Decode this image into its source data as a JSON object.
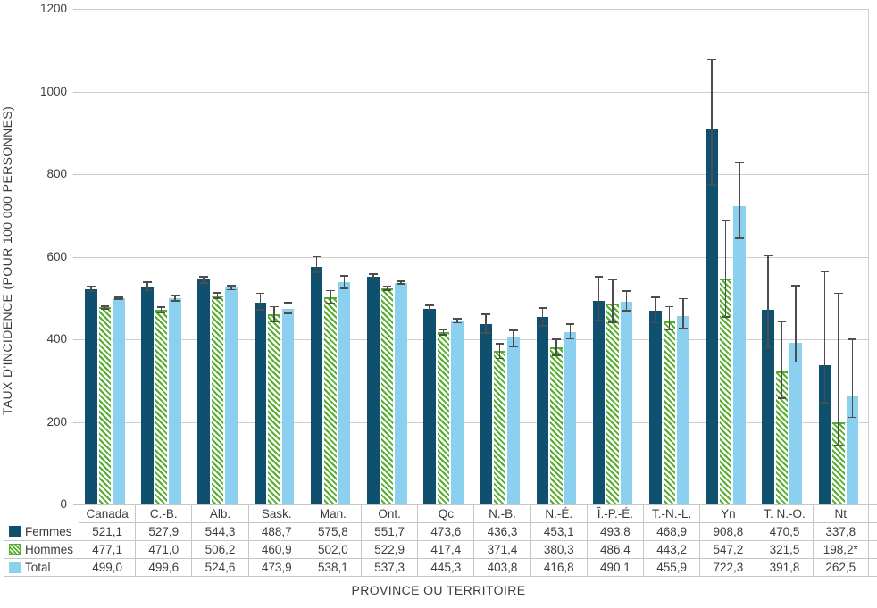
{
  "chart_data": {
    "type": "bar",
    "title": "",
    "xlabel": "PROVINCE OU TERRITOIRE",
    "ylabel": "TAUX D'INCIDENCE (POUR 100 000 PERSONNES)",
    "ylim": [
      0,
      1200
    ],
    "yticks": [
      0,
      200,
      400,
      600,
      800,
      1000,
      1200
    ],
    "grid": true,
    "legend_position": "table-left",
    "error_bars": true,
    "colors": {
      "femmes": "#0e506e",
      "hommes": "#54ad2b",
      "total": "#8bd0ee",
      "error": "#4d4d4d",
      "gridline": "#cdcdcd"
    },
    "categories": [
      "Canada",
      "C.-B.",
      "Alb.",
      "Sask.",
      "Man.",
      "Ont.",
      "Qc",
      "N.-B.",
      "N.-É.",
      "Î.-P.-É.",
      "T.-N.-L.",
      "Yn",
      "T. N.-O.",
      "Nt"
    ],
    "series": [
      {
        "name": "Femmes",
        "style": "solid-femmes",
        "values": [
          521.1,
          527.9,
          544.3,
          488.7,
          575.8,
          551.7,
          473.6,
          436.3,
          453.1,
          493.8,
          468.9,
          908.8,
          470.5,
          337.8
        ],
        "labels": [
          "521,1",
          "527,9",
          "544,3",
          "488,7",
          "575,8",
          "551,7",
          "473,6",
          "436,3",
          "453,1",
          "493,8",
          "468,9",
          "908,8",
          "470,5",
          "337,8"
        ],
        "ci_low": [
          514,
          516,
          535,
          469,
          560,
          544,
          464,
          413,
          431,
          444,
          438,
          773,
          378,
          245
        ],
        "ci_high": [
          529,
          540,
          553,
          513,
          602,
          560,
          484,
          463,
          477,
          553,
          503,
          1080,
          604,
          565
        ]
      },
      {
        "name": "Hommes",
        "style": "hatch-hommes",
        "values": [
          477.1,
          471.0,
          506.2,
          460.9,
          502.0,
          522.9,
          417.4,
          371.4,
          380.3,
          486.4,
          443.2,
          547.2,
          321.5,
          198.2
        ],
        "labels": [
          "477,1",
          "471,0",
          "506,2",
          "460,9",
          "502,0",
          "522,9",
          "417,4",
          "371,4",
          "380,3",
          "486,4",
          "443,2",
          "547,2",
          "321,5",
          "198,2*"
        ],
        "ci_low": [
          472,
          462,
          498,
          442,
          484,
          517,
          409,
          352,
          359,
          439,
          421,
          452,
          255,
          142
        ],
        "ci_high": [
          482,
          480,
          514,
          481,
          520,
          529,
          425,
          391,
          402,
          547,
          481,
          689,
          444,
          513
        ]
      },
      {
        "name": "Total",
        "style": "solid-total",
        "values": [
          499.0,
          499.6,
          524.6,
          473.9,
          538.1,
          537.3,
          445.3,
          403.8,
          416.8,
          490.1,
          455.9,
          722.3,
          391.8,
          262.5
        ],
        "labels": [
          "499,0",
          "499,6",
          "524,6",
          "473,9",
          "538,1",
          "537,3",
          "445,3",
          "403,8",
          "416,8",
          "490,1",
          "455,9",
          "722,3",
          "391,8",
          "262,5"
        ],
        "ci_low": [
          495,
          491,
          518,
          461,
          522,
          532,
          438,
          381,
          399,
          468,
          425,
          642,
          343,
          209
        ],
        "ci_high": [
          503,
          509,
          531,
          490,
          556,
          542,
          452,
          424,
          438,
          518,
          500,
          829,
          531,
          402
        ]
      }
    ]
  }
}
